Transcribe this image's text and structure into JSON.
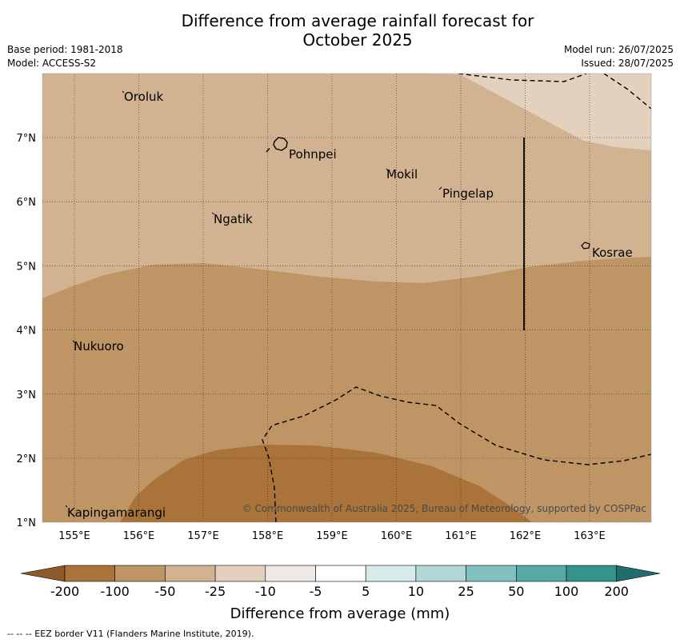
{
  "title_line1": "Difference from average rainfall forecast for",
  "title_line2": "October 2025",
  "base_period": "Base period: 1981-2018",
  "model": "Model: ACCESS-S2",
  "model_run": "Model run: 26/07/2025",
  "issued": "Issued: 28/07/2025",
  "copyright": "© Commonwealth of Australia 2025, Bureau of Meteorology, supported by COSPPac",
  "footer": "--  --  -- EEZ border V11 (Flanders Marine Institute, 2019).",
  "colorbar": {
    "title": "Difference from average (mm)",
    "ticks": [
      "-200",
      "-100",
      "-50",
      "-25",
      "-10",
      "-5",
      "5",
      "10",
      "25",
      "50",
      "100",
      "200"
    ],
    "colors": [
      "#8c5a2b",
      "#a97339",
      "#bf9566",
      "#d2b391",
      "#e3d1be",
      "#eee9e5",
      "#ffffff",
      "#d6ebea",
      "#b0d8d7",
      "#80c2c0",
      "#57a8a6",
      "#35938f",
      "#1f6e6b"
    ]
  },
  "map": {
    "lat_labels": [
      "7°N",
      "6°N",
      "5°N",
      "4°N",
      "3°N",
      "2°N",
      "1°N"
    ],
    "lon_labels": [
      "155°E",
      "156°E",
      "157°E",
      "158°E",
      "159°E",
      "160°E",
      "161°E",
      "162°E",
      "163°E"
    ],
    "places": [
      "Oroluk",
      "Pohnpei",
      "Mokil",
      "Pingelap",
      "Ngatik",
      "Kosrae",
      "Nukuoro",
      "Kapingamarangi"
    ],
    "zone_colors": {
      "z_neg10": "#e3d1be",
      "z_neg25": "#d2b391",
      "z_neg50": "#bf9566",
      "z_neg100": "#a97339"
    }
  }
}
